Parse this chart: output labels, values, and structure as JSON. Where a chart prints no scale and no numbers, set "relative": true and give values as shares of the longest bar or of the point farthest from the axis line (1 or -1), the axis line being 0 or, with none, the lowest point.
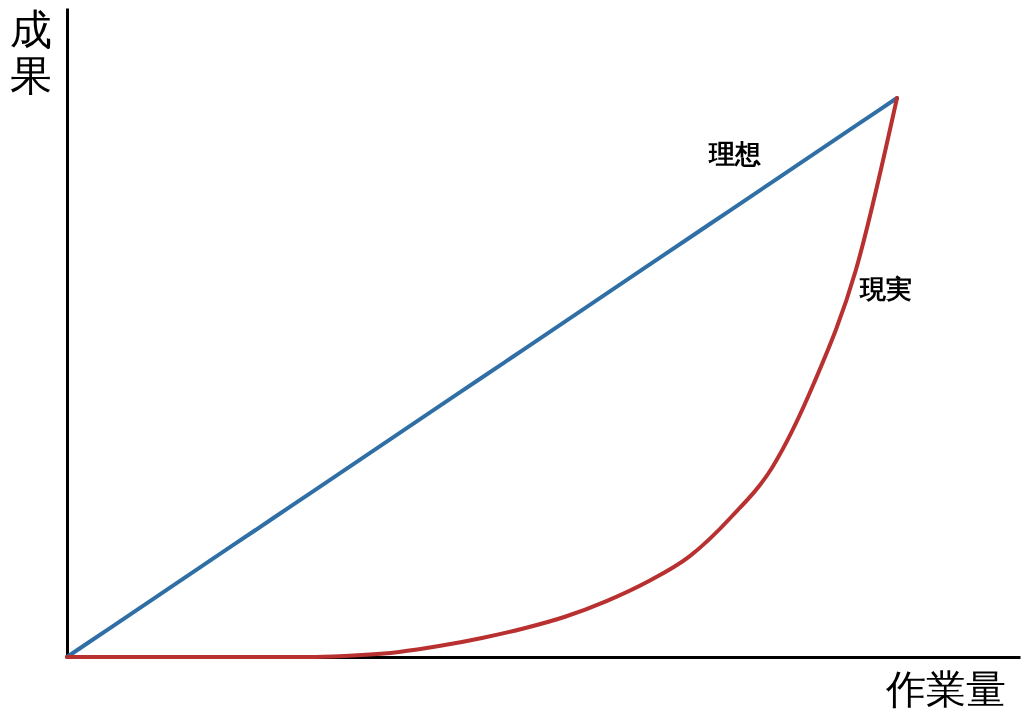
{
  "chart_data": {
    "type": "line",
    "relative": true,
    "xlabel": "作業量",
    "ylabel": "成果",
    "categories": [
      null,
      null,
      null,
      null,
      null,
      null,
      null,
      null,
      null,
      null,
      null,
      null,
      null,
      null,
      null,
      null,
      null,
      null,
      null,
      null,
      null
    ],
    "series": [
      {
        "name": "理想",
        "color": "#2f6fa6",
        "values": [
          0,
          0.05,
          0.1,
          0.15,
          0.2,
          0.25,
          0.3,
          0.35,
          0.4,
          0.45,
          0.5,
          0.55,
          0.6,
          0.65,
          0.7,
          0.75,
          0.8,
          0.85,
          0.9,
          0.95,
          1
        ]
      },
      {
        "name": "現実",
        "color": "#b83030",
        "values": [
          0,
          0,
          0,
          0,
          0,
          0,
          0,
          0.003,
          0.009,
          0.02,
          0.034,
          0.051,
          0.072,
          0.1,
          0.135,
          0.18,
          0.25,
          0.34,
          0.49,
          0.69,
          1
        ]
      }
    ],
    "grid": false,
    "legend": false,
    "tick_labels": false,
    "marker": "none",
    "line_style": "solid"
  }
}
